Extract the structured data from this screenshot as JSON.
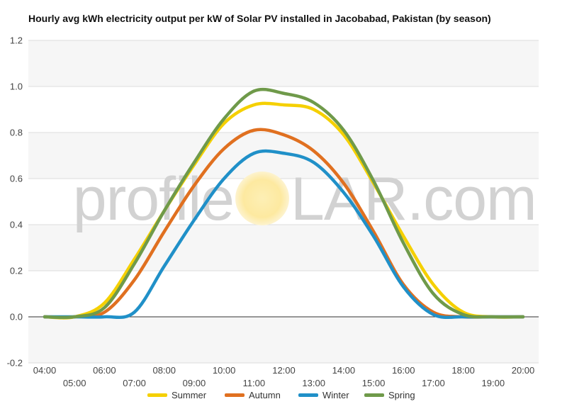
{
  "chart_data": {
    "type": "line",
    "title": "Hourly avg kWh electricity output per kW of Solar PV installed in Jacobabad, Pakistan (by season)",
    "xlabel": "",
    "ylabel": "",
    "ylim": [
      -0.2,
      1.2
    ],
    "yticks": [
      "-0.2",
      "0.0",
      "0.2",
      "0.4",
      "0.6",
      "0.8",
      "1.0",
      "1.2"
    ],
    "xlim": [
      4,
      20
    ],
    "x_ticks_upper": [
      "04:00",
      "06:00",
      "08:00",
      "10:00",
      "12:00",
      "14:00",
      "16:00",
      "18:00",
      "20:00"
    ],
    "x_ticks_lower": [
      "05:00",
      "07:00",
      "09:00",
      "11:00",
      "13:00",
      "15:00",
      "17:00",
      "19:00"
    ],
    "x": [
      4,
      5,
      6,
      7,
      8,
      9,
      10,
      11,
      12,
      13,
      14,
      15,
      16,
      17,
      18,
      19,
      20
    ],
    "grid": true,
    "legend_position": "bottom",
    "series": [
      {
        "name": "Summer",
        "color": "#f5d000",
        "values": [
          0,
          0,
          0.06,
          0.25,
          0.46,
          0.66,
          0.84,
          0.92,
          0.92,
          0.9,
          0.79,
          0.58,
          0.35,
          0.14,
          0.02,
          0,
          0
        ]
      },
      {
        "name": "Autumn",
        "color": "#e07020",
        "values": [
          0,
          0,
          0.02,
          0.16,
          0.37,
          0.57,
          0.73,
          0.81,
          0.79,
          0.72,
          0.58,
          0.37,
          0.14,
          0.02,
          0,
          0,
          0
        ]
      },
      {
        "name": "Winter",
        "color": "#2090c8",
        "values": [
          0,
          0,
          0,
          0.02,
          0.22,
          0.42,
          0.6,
          0.71,
          0.71,
          0.67,
          0.54,
          0.35,
          0.13,
          0.01,
          0,
          0,
          0
        ]
      },
      {
        "name": "Spring",
        "color": "#6f9a4a",
        "values": [
          0,
          0,
          0.04,
          0.23,
          0.46,
          0.67,
          0.86,
          0.98,
          0.97,
          0.93,
          0.81,
          0.59,
          0.32,
          0.1,
          0.01,
          0,
          0
        ]
      }
    ]
  },
  "watermark": {
    "text_before": "profile",
    "text_after": "LAR.com",
    "sun_color": "#fde9a0"
  }
}
